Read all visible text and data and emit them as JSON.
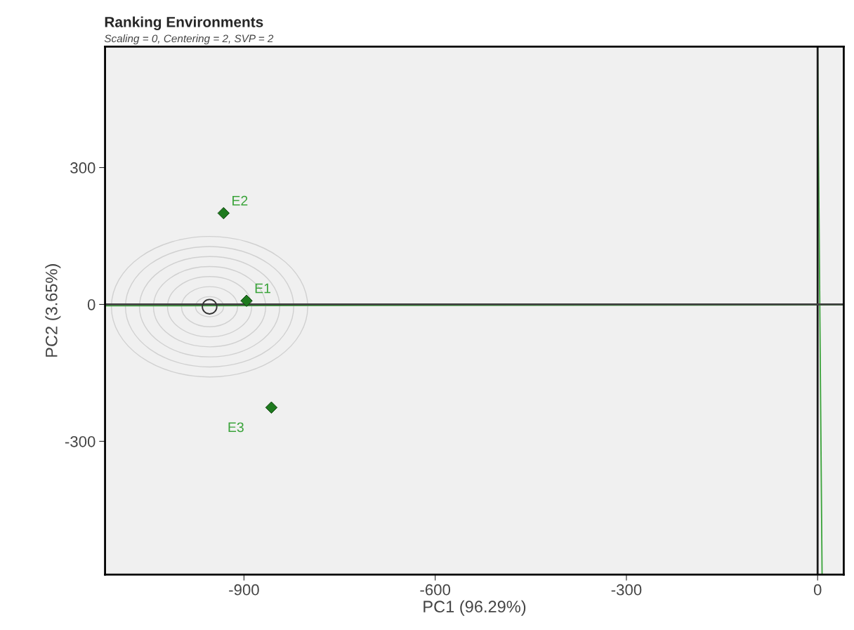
{
  "chart_data": {
    "type": "scatter",
    "title": "Ranking Environments",
    "subtitle": "Scaling = 0, Centering = 2, SVP = 2",
    "xlabel": "PC1 (96.29%)",
    "ylabel": "PC2 (3.65%)",
    "xlim": [
      -1118,
      41
    ],
    "ylim": [
      -592,
      565
    ],
    "xticks": [
      -900,
      -600,
      -300,
      0
    ],
    "yticks": [
      -300,
      0,
      300
    ],
    "grid": false,
    "marker": "diamond",
    "series": [
      {
        "name": "E1",
        "color": "#1e7a1e",
        "x": [
          -896
        ],
        "values": [
          8
        ]
      },
      {
        "name": "E2",
        "color": "#1e7a1e",
        "x": [
          -932
        ],
        "values": [
          200
        ]
      },
      {
        "name": "E3",
        "color": "#1e7a1e",
        "x": [
          -857
        ],
        "values": [
          -226
        ]
      },
      {
        "type": "scatter",
        "marker": "circle",
        "color": "#333333",
        "x": [
          -954
        ],
        "values": [
          -5
        ]
      },
      {
        "type": "line",
        "marker": "none",
        "color": "#3aa33a",
        "x": [
          -1118,
          41
        ],
        "values": [
          -3,
          -1
        ]
      },
      {
        "type": "line",
        "marker": "none",
        "color": "#3aa33a",
        "x": [
          0,
          7
        ],
        "values": [
          565,
          -592
        ]
      }
    ],
    "ref_lines": [
      {
        "axis": "x",
        "value": 0,
        "color": "#1a1a1a"
      },
      {
        "axis": "y",
        "value": 0,
        "color": "#404040"
      }
    ]
  }
}
